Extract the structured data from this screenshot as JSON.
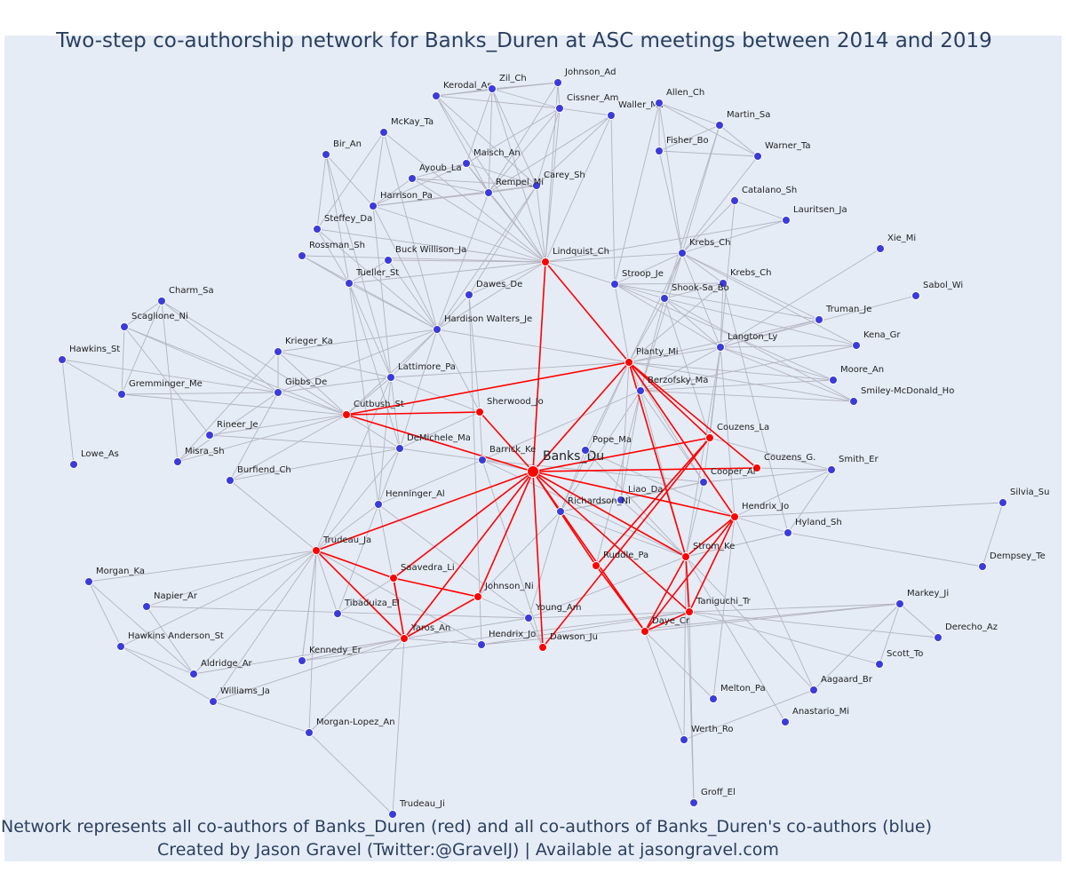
{
  "title": "Two-step co-authorship network for Banks_Duren at ASC meetings between 2014 and 2019",
  "footer": {
    "line1": "Network represents all co-authors of Banks_Duren (red) and all co-authors of Banks_Duren's co-authors (blue)",
    "line2": "Created by Jason Gravel (Twitter:@GravelJ) | Available at jasongravel.com"
  },
  "colors": {
    "background": "#e5ecf6",
    "red": "#ff0000",
    "blue": "#3b3bdb",
    "edge_gray": "#b4b4c0",
    "edge_red": "#ff0000"
  },
  "center": "Banks_Du",
  "red_nodes": [
    "Lindquist_Ch",
    "Planty_Mi",
    "Cutbush_St",
    "Sherwood_Jo",
    "Couzens_La",
    "Couzens_G.",
    "Hendrix_Jo",
    "Strom_Ke",
    "Trudeau_Ja",
    "Saavedra_Li",
    "Johnson_Ni",
    "Yaros_An",
    "Ruddle_Pa",
    "Taniguchi_Tr",
    "Daye_Cr",
    "Dawson_Ju"
  ],
  "blue_nodes": [
    "Kerodal_As",
    "Zil_Ch",
    "Johnson_Ad",
    "Cissner_Am",
    "Waller_Ma",
    "Allen_Ch",
    "Martin_Sa",
    "Fisher_Bo",
    "Warner_Ta",
    "McKay_Ta",
    "Bir_An",
    "Maisch_An",
    "Ayoub_La",
    "Carey_Sh",
    "Rempel_Mi",
    "Harrison_Pa",
    "Catalano_Sh",
    "Lauritsen_Ja",
    "Steffey_Da",
    "Rossman_Sh",
    "Buck Willison_Ja",
    "Krebs_Ch",
    "Tueller_St",
    "Xie_Mi",
    "Dawes_De",
    "Stroop_Je",
    "Shook-Sa_Bo",
    "Sabol_Wi",
    "Charm_Sa",
    "Truman_Je",
    "Scaglione_Ni",
    "Hardison Walters_Je",
    "Kena_Gr",
    "Langton_Ly",
    "Hawkins_St",
    "Krieger_Ka",
    "Moore_An",
    "Lattimore_Pa",
    "Berzofsky_Ma",
    "Gremminger_Me",
    "Gibbs_De",
    "Smiley-McDonald_Ho",
    "Rineer_Je",
    "Pope_Ma",
    "DeMichele_Ma",
    "Lowe_As",
    "Misra_Sh",
    "Barrick_Ke",
    "Smith_Er",
    "Burfiend_Ch",
    "Cooper_Al",
    "Liao_Da",
    "Henninger_Al",
    "Richardson_Ni",
    "Silvia_Su",
    "Hyland_Sh",
    "Dempsey_Te",
    "Morgan_Ka",
    "Napier_Ar",
    "Tibaduiza_El",
    "Young_Am",
    "Markey_Ji",
    "Hawkins Anderson_St",
    "Hendrix_Jo",
    "Derecho_Az",
    "Kennedy_Er",
    "Scott_To",
    "Aldridge_Ar",
    "Williams_Ja",
    "Aagaard_Br",
    "Melton_Pa",
    "Anastario_Mi",
    "Morgan-Lopez_An",
    "Werth_Ro",
    "Groff_El",
    "Trudeau_Ji"
  ]
}
